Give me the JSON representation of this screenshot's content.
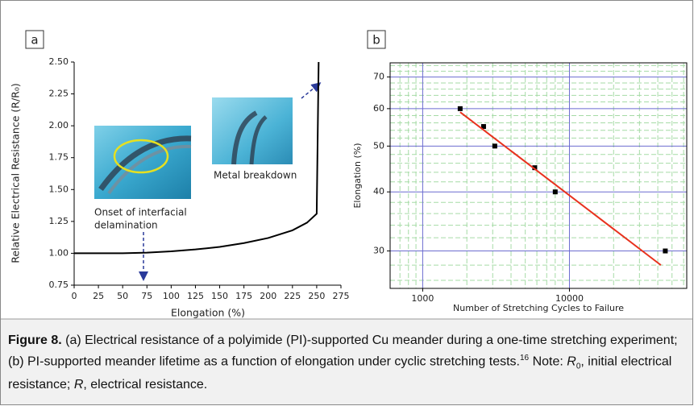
{
  "chart_data": [
    {
      "type": "line",
      "panel": "a",
      "x": [
        0,
        25,
        50,
        75,
        100,
        125,
        150,
        175,
        200,
        225,
        240,
        250,
        252
      ],
      "values": [
        1.0,
        1.0,
        1.0,
        1.005,
        1.015,
        1.03,
        1.05,
        1.08,
        1.12,
        1.18,
        1.24,
        1.31,
        2.5
      ],
      "color": "#000000",
      "xlim": [
        0,
        275
      ],
      "xticks": [
        0,
        25,
        50,
        75,
        100,
        125,
        150,
        175,
        200,
        225,
        250,
        275
      ],
      "ylim": [
        0.75,
        2.5
      ],
      "yticks": [
        {
          "value": 0.75,
          "label": "0.75"
        },
        {
          "value": 1,
          "label": "1.00"
        },
        {
          "value": 1.25,
          "label": "1.25"
        },
        {
          "value": 1.5,
          "label": "1.50"
        },
        {
          "value": 1.75,
          "label": "1.75"
        },
        {
          "value": 2,
          "label": "2.00"
        },
        {
          "value": 2.25,
          "label": "2.25"
        },
        {
          "value": 2.5,
          "label": "2.50"
        }
      ],
      "x_label": "Elongation (%)",
      "y_label": "Relative Electrical Resistance (R/R₀)",
      "annotations": [
        "Onset of interfacial",
        "delamination",
        "Metal breakdown"
      ],
      "grid": false
    },
    {
      "type": "scatter",
      "panel": "b",
      "series": [
        {
          "mode": "marker",
          "color": "#000000",
          "x": [
            1800,
            2600,
            3100,
            5800,
            8000,
            45000
          ],
          "values": [
            60,
            55,
            50,
            45,
            40,
            30
          ]
        },
        {
          "mode": "line",
          "color": "#e8321e",
          "x": [
            1800,
            42000
          ],
          "values": [
            59,
            28
          ]
        }
      ],
      "xlog": true,
      "ylog": true,
      "xlim": [
        600,
        63000
      ],
      "xticks": [
        1000,
        10000
      ],
      "xminorticks": [
        700,
        800,
        900,
        2000,
        3000,
        4000,
        5000,
        6000,
        7000,
        8000,
        9000,
        20000,
        30000,
        40000,
        50000,
        60000
      ],
      "ylim": [
        25,
        75
      ],
      "yticks": [
        30,
        40,
        50,
        60,
        70
      ],
      "yminorticks": [
        26,
        28,
        32,
        34,
        36,
        38,
        42,
        44,
        46,
        48,
        52,
        54,
        56,
        58,
        62,
        64,
        66,
        68,
        72,
        74
      ],
      "x_label": "Number of Stretching Cycles to Failure",
      "y_label": "Elongation (%)",
      "grid": true,
      "grid_color": "#6b6bd0",
      "minor_grid_color": "#a6dba6"
    }
  ],
  "caption": {
    "label": "Figure 8.",
    "text": " (a) Electrical resistance of a polyimide (PI)-supported Cu meander during a one-time stretching experiment; (b) PI-supported meander lifetime as a function of elongation under cyclic stretching tests.",
    "ref": "16",
    "note": " Note: ",
    "r0": "R",
    "r0_sub": "0",
    "r0_text": ", initial electrical resistance; ",
    "r": "R",
    "r_text": ", electrical resistance."
  }
}
